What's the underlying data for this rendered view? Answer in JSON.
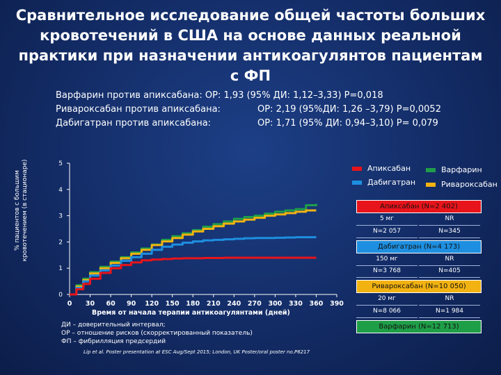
{
  "title": "Сравнительное исследование общей частоты больших кровотечений в США на основе данных реальной практики при назначении антикоагулянтов пациентам с ФП",
  "stats": [
    {
      "left": "Варфарин против апиксабана: ОР: 1,93 (95% ДИ: 1,12–3,33) Р=0,018",
      "right": ""
    },
    {
      "left": "Ривароксабан против апиксабана:",
      "right": "ОР: 2,19 (95%ДИ: 1,26 –3,79) Р=0,0052"
    },
    {
      "left": "Дабигатран против апиксабана:",
      "right": "ОР: 1,71 (95% ДИ: 0,94–3,10) Р= 0,079"
    }
  ],
  "legend": {
    "apixaban": "Апиксабан",
    "warfarin": "Варфарин",
    "dabigatran": "Дабигатран",
    "rivaroxaban": "Ривароксабан"
  },
  "boxes": {
    "apixaban": {
      "title": "Апиксабан (N=2 402)",
      "c1h": "5 мг",
      "c2h": "NR",
      "c1v": "N=2 057",
      "c2v": "N=345"
    },
    "dabigatran": {
      "title": "Дабигатран (N=4 173)",
      "c1h": "150 мг",
      "c2h": "NR",
      "c1v": "N=3 768",
      "c2v": "N=405"
    },
    "rivaroxaban": {
      "title": "Ривароксабан (N=10 050)",
      "c1h": "20 мг",
      "c2h": "NR",
      "c1v": "N=8 066",
      "c2v": "N=1 984"
    },
    "warfarin": {
      "title": "Варфарин (N=12 713)"
    }
  },
  "footnotes": [
    "ДИ – доверительный интервал;",
    "ОР – отношение рисков (скорректированный показатель)",
    "ФП – фибрилляция предсердий"
  ],
  "reference": "Lip et al. Poster presentation at ESC Aug/Sept 2015; London, UK Poster/oral poster no.P6217",
  "chart_data": {
    "type": "line",
    "xlabel": "Время от начала терапии антикоагулянтами (дней)",
    "ylabel": "% пациентов с большим кровотечением (в стационаре)",
    "xlim": [
      0,
      390
    ],
    "ylim": [
      0,
      5
    ],
    "xticks": [
      0,
      30,
      60,
      90,
      120,
      150,
      180,
      210,
      240,
      270,
      300,
      330,
      360,
      390
    ],
    "yticks": [
      0,
      1,
      2,
      3,
      4,
      5
    ],
    "colors": {
      "apixaban": "#e8141b",
      "warfarin": "#1f9e48",
      "dabigatran": "#1e8fe0",
      "rivaroxaban": "#f2b211"
    },
    "series": [
      {
        "name": "Варфарин",
        "key": "warfarin",
        "x": [
          0,
          10,
          20,
          30,
          45,
          60,
          75,
          90,
          105,
          120,
          135,
          150,
          165,
          180,
          195,
          210,
          225,
          240,
          255,
          270,
          285,
          300,
          315,
          330,
          345,
          360
        ],
        "y": [
          0,
          0.35,
          0.6,
          0.85,
          1.05,
          1.25,
          1.42,
          1.6,
          1.75,
          1.9,
          2.08,
          2.22,
          2.33,
          2.45,
          2.58,
          2.68,
          2.78,
          2.88,
          2.95,
          3.0,
          3.08,
          3.15,
          3.2,
          3.25,
          3.4,
          3.45
        ]
      },
      {
        "name": "Ривароксабан",
        "key": "rivaroxaban",
        "x": [
          0,
          10,
          20,
          30,
          45,
          60,
          75,
          90,
          105,
          120,
          135,
          150,
          165,
          180,
          195,
          210,
          225,
          240,
          255,
          270,
          285,
          300,
          315,
          330,
          345,
          360
        ],
        "y": [
          0,
          0.3,
          0.55,
          0.8,
          1.0,
          1.2,
          1.38,
          1.55,
          1.7,
          1.88,
          2.02,
          2.15,
          2.28,
          2.4,
          2.5,
          2.6,
          2.7,
          2.78,
          2.85,
          2.92,
          3.0,
          3.05,
          3.1,
          3.15,
          3.2,
          3.2
        ]
      },
      {
        "name": "Дабигатран",
        "key": "dabigatran",
        "x": [
          0,
          10,
          20,
          30,
          45,
          60,
          75,
          90,
          105,
          120,
          135,
          150,
          165,
          180,
          195,
          210,
          225,
          240,
          255,
          270,
          285,
          300,
          315,
          330,
          345,
          360
        ],
        "y": [
          0,
          0.25,
          0.5,
          0.72,
          0.92,
          1.1,
          1.28,
          1.42,
          1.55,
          1.7,
          1.82,
          1.9,
          1.97,
          2.02,
          2.06,
          2.08,
          2.1,
          2.12,
          2.14,
          2.15,
          2.15,
          2.16,
          2.17,
          2.18,
          2.18,
          2.18
        ]
      },
      {
        "name": "Апиксабан",
        "key": "apixaban",
        "x": [
          0,
          10,
          20,
          30,
          45,
          60,
          75,
          90,
          105,
          120,
          135,
          150,
          165,
          180,
          195,
          210,
          225,
          240,
          255,
          270,
          285,
          300,
          315,
          330,
          345,
          360
        ],
        "y": [
          0,
          0.2,
          0.4,
          0.6,
          0.82,
          1.0,
          1.12,
          1.22,
          1.3,
          1.33,
          1.35,
          1.37,
          1.38,
          1.38,
          1.39,
          1.39,
          1.4,
          1.4,
          1.4,
          1.4,
          1.4,
          1.4,
          1.4,
          1.4,
          1.4,
          1.4
        ]
      }
    ]
  }
}
